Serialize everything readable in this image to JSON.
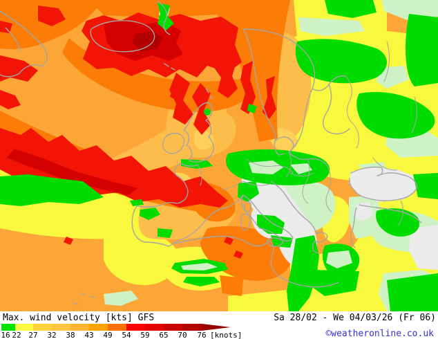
{
  "footer": {
    "title": "Max. wind velocity [kts] GFS",
    "period": "Sa 28/02 - We 04/03/26 (Fr 06)",
    "attribution": "©weatheronline.co.uk",
    "attribution_color": "#3232c8"
  },
  "legend": {
    "ticks": [
      "16",
      "22",
      "27",
      "32",
      "38",
      "43",
      "49",
      "54",
      "59",
      "65",
      "70",
      "76"
    ],
    "unit_label": "[knots]",
    "segment_colors": [
      "#00e400",
      "#fbfb3f",
      "#fdd23b",
      "#fdc53e",
      "#feb431",
      "#fea201",
      "#fd7100",
      "#fd0100",
      "#e50000",
      "#cb0000",
      "#b20000"
    ],
    "arrow_color": "#970000"
  },
  "map": {
    "model_name": "GFS",
    "parameter": "Max. wind velocity",
    "unit": "kts",
    "palette": {
      "base_orange": "#fba637",
      "amber": "#fdbd4a",
      "pale_gold": "#fdd05a",
      "yellow": "#f8f83e",
      "deep_orange": "#fb7d07",
      "red": "#f21505",
      "dark_red": "#d40000",
      "darkest_red": "#b20000",
      "green": "#00dc00",
      "pale_green": "#cef2c6",
      "calm_white": "#ebebeb",
      "coastline_gray": "#a5a5a5"
    }
  }
}
